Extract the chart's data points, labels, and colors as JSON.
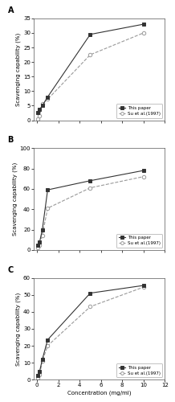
{
  "panels": [
    {
      "label": "A",
      "ylim": [
        0,
        35
      ],
      "yticks": [
        0,
        5,
        10,
        15,
        20,
        25,
        30,
        35
      ],
      "this_paper_x": [
        0.1,
        0.25,
        0.5,
        1.0,
        5.0,
        10.0
      ],
      "this_paper_y": [
        2.5,
        3.8,
        5.0,
        8.0,
        29.5,
        33.0
      ],
      "su_x": [
        0.1,
        0.25,
        0.5,
        1.0,
        5.0,
        10.0
      ],
      "su_y": [
        0.5,
        1.5,
        5.8,
        7.2,
        22.5,
        30.0
      ]
    },
    {
      "label": "B",
      "ylim": [
        0,
        100
      ],
      "yticks": [
        0,
        20,
        40,
        60,
        80,
        100
      ],
      "this_paper_x": [
        0.1,
        0.25,
        0.5,
        1.0,
        5.0,
        10.0
      ],
      "this_paper_y": [
        5.0,
        8.0,
        20.0,
        59.0,
        68.0,
        78.0
      ],
      "su_x": [
        0.1,
        0.25,
        0.5,
        1.0,
        5.0,
        10.0
      ],
      "su_y": [
        2.0,
        5.0,
        14.5,
        41.0,
        61.0,
        72.0
      ]
    },
    {
      "label": "C",
      "ylim": [
        0,
        60
      ],
      "yticks": [
        0,
        10,
        20,
        30,
        40,
        50,
        60
      ],
      "this_paper_x": [
        0.1,
        0.25,
        0.5,
        1.0,
        5.0,
        10.0
      ],
      "this_paper_y": [
        2.5,
        5.0,
        12.0,
        23.5,
        51.0,
        55.5
      ],
      "su_x": [
        0.1,
        0.25,
        0.5,
        1.0,
        5.0,
        10.0
      ],
      "su_y": [
        1.0,
        3.0,
        11.0,
        20.0,
        43.0,
        54.5
      ]
    }
  ],
  "xlabel": "Concentration (mg/ml)",
  "ylabel": "Scavenging capability (%)",
  "xlim": [
    -0.3,
    12
  ],
  "xticks": [
    0,
    2,
    4,
    6,
    8,
    10,
    12
  ],
  "line1_label": "This paper",
  "line2_label": "Su et al.(1997)",
  "line1_color": "#333333",
  "line2_color": "#999999",
  "bg_color": "#ffffff",
  "legend_loc": "lower right"
}
